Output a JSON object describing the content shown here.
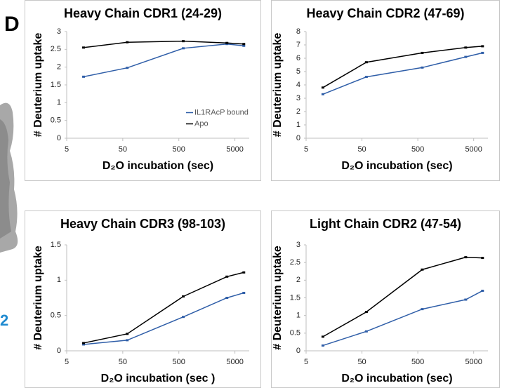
{
  "panel_label": "D",
  "side_text": "2",
  "chart_data": [
    {
      "type": "line",
      "title": "Heavy Chain CDR1 (24-29)",
      "x_label": "D₂O incubation (sec)",
      "y_label": "# Deuterium uptake",
      "x": [
        10,
        60,
        600,
        3600,
        7200
      ],
      "xlim": [
        5,
        9000
      ],
      "xticks": [
        5,
        50,
        500,
        5000
      ],
      "log_x": true,
      "ylim": [
        0,
        3
      ],
      "yticks": [
        0,
        0.5,
        1,
        1.5,
        2,
        2.5,
        3
      ],
      "grid": false,
      "legend": "right",
      "series": [
        {
          "name": "IL1RAcP bound",
          "color": "#2f5ea8",
          "values": [
            1.73,
            1.98,
            2.53,
            2.65,
            2.6
          ]
        },
        {
          "name": "Apo",
          "color": "#000000",
          "values": [
            2.55,
            2.7,
            2.73,
            2.68,
            2.65
          ]
        }
      ]
    },
    {
      "type": "line",
      "title": "Heavy Chain CDR2 (47-69)",
      "x_label": "D₂O incubation (sec)",
      "y_label": "# Deuterium uptake",
      "x": [
        10,
        60,
        600,
        3600,
        7200
      ],
      "xlim": [
        5,
        9000
      ],
      "xticks": [
        5,
        50,
        500,
        5000
      ],
      "log_x": true,
      "ylim": [
        0,
        8
      ],
      "yticks": [
        0,
        1,
        2,
        3,
        4,
        5,
        6,
        7,
        8
      ],
      "grid": false,
      "series": [
        {
          "color": "#2f5ea8",
          "values": [
            3.3,
            4.6,
            5.3,
            6.1,
            6.4
          ]
        },
        {
          "color": "#000000",
          "values": [
            3.8,
            5.7,
            6.4,
            6.8,
            6.9
          ]
        }
      ]
    },
    {
      "type": "line",
      "title": "Heavy Chain CDR3 (98-103)",
      "x_label": "D₂O incubation (sec )",
      "y_label": "# Deuterium uptake",
      "x": [
        10,
        60,
        600,
        3600,
        7200
      ],
      "xlim": [
        5,
        9000
      ],
      "xticks": [
        5,
        50,
        500,
        5000
      ],
      "log_x": true,
      "ylim": [
        0,
        1.5
      ],
      "yticks": [
        0,
        0.5,
        1,
        1.5
      ],
      "grid": false,
      "series": [
        {
          "color": "#2f5ea8",
          "values": [
            0.09,
            0.15,
            0.48,
            0.75,
            0.82
          ]
        },
        {
          "color": "#000000",
          "values": [
            0.11,
            0.24,
            0.77,
            1.05,
            1.11
          ]
        }
      ]
    },
    {
      "type": "line",
      "title": "Light Chain CDR2 (47-54)",
      "x_label": "D₂O incubation (sec)",
      "y_label": "# Deuterium uptake",
      "x": [
        10,
        60,
        600,
        3600,
        7200
      ],
      "xlim": [
        5,
        9000
      ],
      "xticks": [
        5,
        50,
        500,
        5000
      ],
      "log_x": true,
      "ylim": [
        0,
        3
      ],
      "yticks": [
        0,
        0.5,
        1,
        1.5,
        2,
        2.5,
        3
      ],
      "grid": false,
      "series": [
        {
          "color": "#2f5ea8",
          "values": [
            0.15,
            0.55,
            1.18,
            1.45,
            1.7
          ]
        },
        {
          "color": "#000000",
          "values": [
            0.4,
            1.1,
            2.3,
            2.65,
            2.63
          ]
        }
      ]
    }
  ]
}
